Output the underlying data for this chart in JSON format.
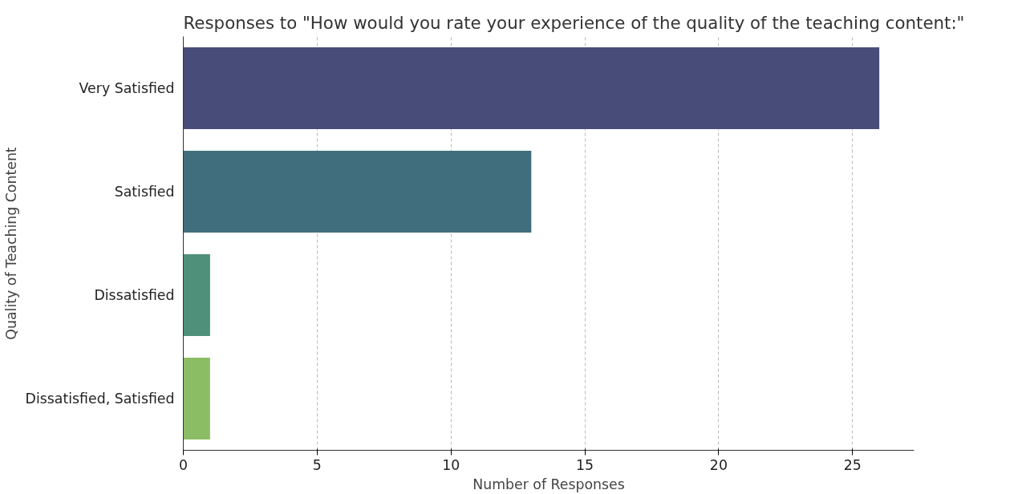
{
  "chart_data": {
    "type": "bar",
    "orientation": "horizontal",
    "title": "Responses to \"How would you rate your experience of the quality of the teaching content:\"",
    "xlabel": "Number of Responses",
    "ylabel": "Quality of Teaching Content",
    "categories": [
      "Very Satisfied",
      "Satisfied",
      "Dissatisfied",
      "Dissatisfied, Satisfied"
    ],
    "values": [
      26,
      13,
      1,
      1
    ],
    "colors": [
      "#484c78",
      "#416e7c",
      "#4f907a",
      "#8bbd65"
    ],
    "xlim": [
      0,
      27.3
    ],
    "xticks": [
      0,
      5,
      10,
      15,
      20,
      25
    ],
    "grid": "x"
  }
}
